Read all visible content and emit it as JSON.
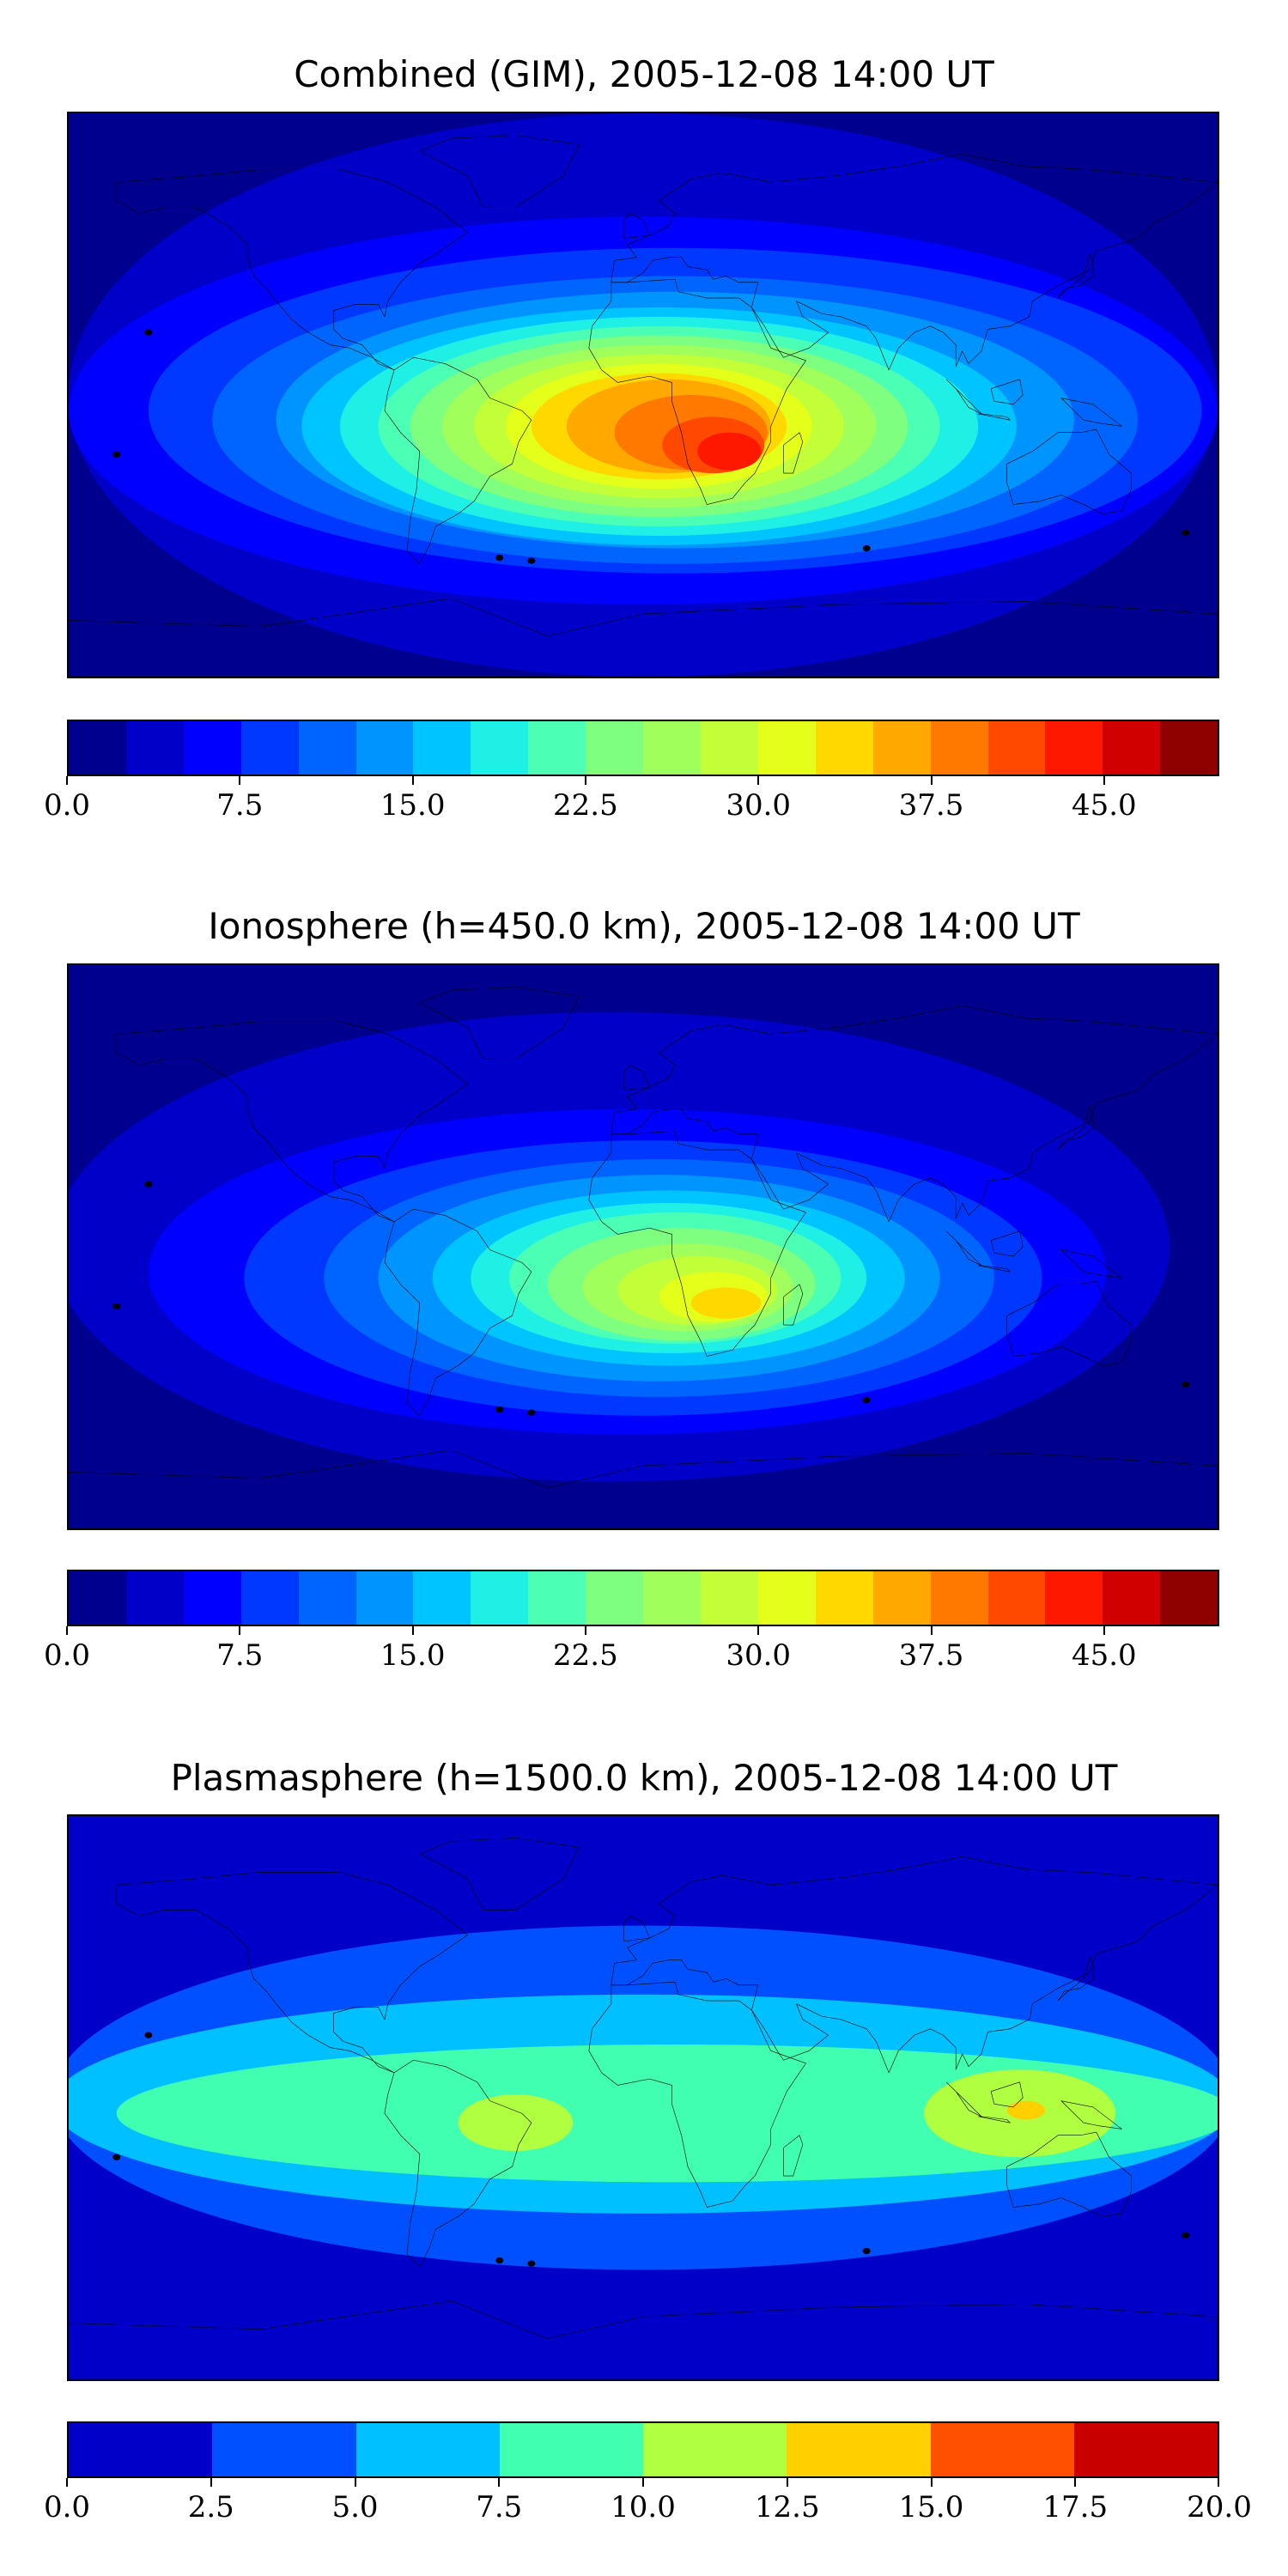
{
  "panels": [
    {
      "title": "Combined (GIM), 2005-12-08 14:00 UT",
      "colorbar": {
        "min": 0,
        "max": 50,
        "colors": [
          "#00008f",
          "#0000c8",
          "#0000ff",
          "#0038ff",
          "#0064ff",
          "#0094ff",
          "#00c4ff",
          "#1ff0e6",
          "#4bffb4",
          "#7fff80",
          "#a0ff5a",
          "#c3ff38",
          "#e3ff1a",
          "#ffd800",
          "#ffa800",
          "#ff7800",
          "#ff4800",
          "#ff1800",
          "#d00000",
          "#8f0000"
        ],
        "tick_values": [
          0,
          7.5,
          15,
          22.5,
          30,
          37.5,
          45
        ],
        "tick_labels": [
          "0.0",
          "7.5",
          "15.0",
          "22.5",
          "30.0",
          "37.5",
          "45.0"
        ]
      },
      "blobs": [
        {
          "lon": 0,
          "lat": 0,
          "rx": 180,
          "ry": 90,
          "level": 1
        },
        {
          "lon": 0,
          "lat": -5,
          "rx": 180,
          "ry": 62,
          "level": 2
        },
        {
          "lon": 10,
          "lat": -5,
          "rx": 165,
          "ry": 52,
          "level": 3
        },
        {
          "lon": 10,
          "lat": -8,
          "rx": 145,
          "ry": 46,
          "level": 4
        },
        {
          "lon": 10,
          "lat": -8,
          "rx": 125,
          "ry": 41,
          "level": 5
        },
        {
          "lon": 5,
          "lat": -10,
          "rx": 112,
          "ry": 38,
          "level": 6
        },
        {
          "lon": 5,
          "lat": -10,
          "rx": 100,
          "ry": 35,
          "level": 7
        },
        {
          "lon": 5,
          "lat": -10,
          "rx": 88,
          "ry": 32,
          "level": 8
        },
        {
          "lon": 5,
          "lat": -10,
          "rx": 78,
          "ry": 29,
          "level": 9
        },
        {
          "lon": 5,
          "lat": -10,
          "rx": 68,
          "ry": 26,
          "level": 10
        },
        {
          "lon": 5,
          "lat": -10,
          "rx": 58,
          "ry": 23,
          "level": 11
        },
        {
          "lon": 5,
          "lat": -10,
          "rx": 48,
          "ry": 20,
          "level": 12
        },
        {
          "lon": 5,
          "lat": -10,
          "rx": 40,
          "ry": 17,
          "level": 13
        },
        {
          "lon": 8,
          "lat": -10,
          "rx": 32,
          "ry": 15,
          "level": 14
        },
        {
          "lon": 15,
          "lat": -12,
          "rx": 24,
          "ry": 12,
          "level": 15
        },
        {
          "lon": 22,
          "lat": -16,
          "rx": 16,
          "ry": 9,
          "level": 16
        },
        {
          "lon": 27,
          "lat": -18,
          "rx": 10,
          "ry": 6,
          "level": 17
        }
      ]
    },
    {
      "title": "Ionosphere  (h=450.0 km), 2005-12-08 14:00 UT",
      "colorbar": {
        "min": 0,
        "max": 50,
        "colors": [
          "#00008f",
          "#0000c8",
          "#0000ff",
          "#0038ff",
          "#0064ff",
          "#0094ff",
          "#00c4ff",
          "#1ff0e6",
          "#4bffb4",
          "#7fff80",
          "#a0ff5a",
          "#c3ff38",
          "#e3ff1a",
          "#ffd800",
          "#ffa800",
          "#ff7800",
          "#ff4800",
          "#ff1800",
          "#d00000",
          "#8f0000"
        ],
        "tick_values": [
          0,
          7.5,
          15,
          22.5,
          30,
          37.5,
          45
        ],
        "tick_labels": [
          "0.0",
          "7.5",
          "15.0",
          "22.5",
          "30.0",
          "37.5",
          "45.0"
        ]
      },
      "blobs": [
        {
          "lon": -10,
          "lat": 0,
          "rx": 175,
          "ry": 75,
          "level": 1
        },
        {
          "lon": -5,
          "lat": -8,
          "rx": 150,
          "ry": 52,
          "level": 2
        },
        {
          "lon": 0,
          "lat": -10,
          "rx": 125,
          "ry": 44,
          "level": 3
        },
        {
          "lon": 5,
          "lat": -10,
          "rx": 105,
          "ry": 38,
          "level": 4
        },
        {
          "lon": 5,
          "lat": -10,
          "rx": 88,
          "ry": 33,
          "level": 5
        },
        {
          "lon": 8,
          "lat": -10,
          "rx": 74,
          "ry": 28,
          "level": 6
        },
        {
          "lon": 8,
          "lat": -10,
          "rx": 62,
          "ry": 24,
          "level": 7
        },
        {
          "lon": 10,
          "lat": -10,
          "rx": 52,
          "ry": 21,
          "level": 8
        },
        {
          "lon": 12,
          "lat": -12,
          "rx": 42,
          "ry": 18,
          "level": 9
        },
        {
          "lon": 14,
          "lat": -13,
          "rx": 33,
          "ry": 14,
          "level": 10
        },
        {
          "lon": 17,
          "lat": -14,
          "rx": 25,
          "ry": 11,
          "level": 11
        },
        {
          "lon": 22,
          "lat": -16,
          "rx": 17,
          "ry": 8,
          "level": 12
        },
        {
          "lon": 26,
          "lat": -18,
          "rx": 11,
          "ry": 5,
          "level": 13
        }
      ]
    },
    {
      "title": "Plasmasphere (h=1500.0 km), 2005-12-08 14:00 UT",
      "colorbar": {
        "min": 0,
        "max": 20,
        "colors": [
          "#0000c8",
          "#0050ff",
          "#00c0ff",
          "#40ffb0",
          "#b0ff40",
          "#ffd000",
          "#ff5000",
          "#c80000"
        ],
        "tick_values": [
          0,
          2.5,
          5,
          7.5,
          10,
          12.5,
          15,
          17.5,
          20
        ],
        "tick_labels": [
          "0.0",
          "2.5",
          "5.0",
          "7.5",
          "10.0",
          "12.5",
          "15.0",
          "17.5",
          "20.0"
        ]
      },
      "blobs": [
        {
          "lon": 0,
          "lat": 0,
          "rx": 185,
          "ry": 55,
          "level": 1
        },
        {
          "lon": 0,
          "lat": -2,
          "rx": 185,
          "ry": 35,
          "level": 2
        },
        {
          "lon": 10,
          "lat": -5,
          "rx": 175,
          "ry": 22,
          "level": 3
        },
        {
          "lon": -40,
          "lat": -8,
          "rx": 18,
          "ry": 9,
          "level": 4
        },
        {
          "lon": 118,
          "lat": -5,
          "rx": 30,
          "ry": 14,
          "level": 4
        },
        {
          "lon": 120,
          "lat": -4,
          "rx": 6,
          "ry": 3,
          "level": 5
        }
      ]
    }
  ]
}
